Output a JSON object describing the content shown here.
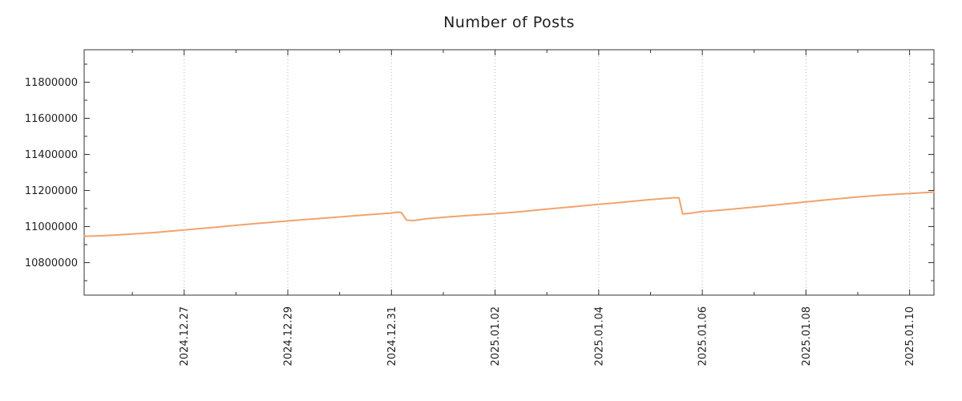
{
  "title": "Number of Posts",
  "colors": {
    "line": "#f2a36e",
    "grid": "#b3b3b3",
    "axis": "#333333",
    "text": "#1f1f1f",
    "background": "#ffffff"
  },
  "chart_data": {
    "type": "line",
    "title": "Number of Posts",
    "xlabel": "",
    "ylabel": "",
    "legend": "none",
    "grid": {
      "vertical": true,
      "horizontal": false,
      "style": "dotted"
    },
    "x_axis": {
      "unit": "days since 2024.12.25 (approx left edge of plot)",
      "range": [
        0,
        16.4
      ],
      "ticks": [
        {
          "pos": 1.93,
          "label": "2024.12.27"
        },
        {
          "pos": 3.93,
          "label": "2024.12.29"
        },
        {
          "pos": 5.93,
          "label": "2024.12.31"
        },
        {
          "pos": 7.93,
          "label": "2025.01.02"
        },
        {
          "pos": 9.93,
          "label": "2025.01.04"
        },
        {
          "pos": 11.93,
          "label": "2025.01.06"
        },
        {
          "pos": 13.93,
          "label": "2025.01.08"
        },
        {
          "pos": 15.93,
          "label": "2025.01.10"
        }
      ],
      "minor_ticks": [
        0.93,
        2.93,
        4.93,
        6.93,
        8.93,
        10.93,
        12.93,
        14.93
      ]
    },
    "y_axis": {
      "range": [
        10620000,
        11980000
      ],
      "ticks": [
        {
          "pos": 10800000,
          "label": "10800000"
        },
        {
          "pos": 11000000,
          "label": "11000000"
        },
        {
          "pos": 11200000,
          "label": "11200000"
        },
        {
          "pos": 11400000,
          "label": "11400000"
        },
        {
          "pos": 11600000,
          "label": "11600000"
        },
        {
          "pos": 11800000,
          "label": "11800000"
        }
      ],
      "minor_ticks": [
        10700000,
        10900000,
        11100000,
        11300000,
        11500000,
        11700000,
        11900000
      ]
    },
    "series": [
      {
        "name": "Number of Posts",
        "color": "#f2a36e",
        "points": [
          [
            0.0,
            10946000
          ],
          [
            0.3,
            10949000
          ],
          [
            0.6,
            10953000
          ],
          [
            1.0,
            10960000
          ],
          [
            1.4,
            10968000
          ],
          [
            1.93,
            10981000
          ],
          [
            2.4,
            10993000
          ],
          [
            2.9,
            11006000
          ],
          [
            3.4,
            11019000
          ],
          [
            3.93,
            11031000
          ],
          [
            4.4,
            11042000
          ],
          [
            4.9,
            11053000
          ],
          [
            5.4,
            11064000
          ],
          [
            5.93,
            11075000
          ],
          [
            6.05,
            11080000
          ],
          [
            6.12,
            11078000
          ],
          [
            6.22,
            11036000
          ],
          [
            6.35,
            11033000
          ],
          [
            6.6,
            11043000
          ],
          [
            7.0,
            11053000
          ],
          [
            7.5,
            11063000
          ],
          [
            7.93,
            11071000
          ],
          [
            8.4,
            11082000
          ],
          [
            8.9,
            11096000
          ],
          [
            9.4,
            11109000
          ],
          [
            9.93,
            11123000
          ],
          [
            10.4,
            11135000
          ],
          [
            10.9,
            11149000
          ],
          [
            11.25,
            11157000
          ],
          [
            11.4,
            11160000
          ],
          [
            11.48,
            11159000
          ],
          [
            11.55,
            11070000
          ],
          [
            11.7,
            11074000
          ],
          [
            11.93,
            11083000
          ],
          [
            12.4,
            11094000
          ],
          [
            12.9,
            11107000
          ],
          [
            13.4,
            11121000
          ],
          [
            13.93,
            11137000
          ],
          [
            14.4,
            11150000
          ],
          [
            14.9,
            11163000
          ],
          [
            15.4,
            11174000
          ],
          [
            15.93,
            11183000
          ],
          [
            16.4,
            11191000
          ]
        ]
      }
    ]
  }
}
